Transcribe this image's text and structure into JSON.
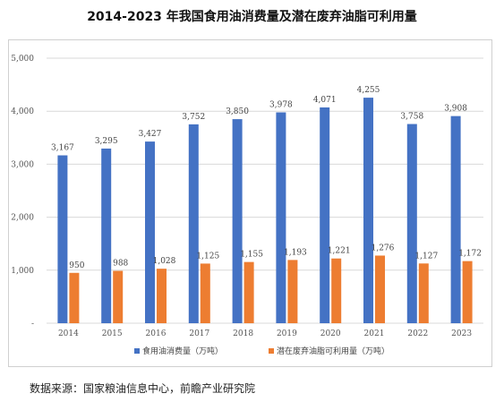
{
  "title": "2014-2023 年我国食用油消费量及潜在废弃油脂可利用量",
  "source": "数据来源：国家粮油信息中心，前瞻产业研究院",
  "chart_data": {
    "type": "bar",
    "categories": [
      "2014",
      "2015",
      "2016",
      "2017",
      "2018",
      "2019",
      "2020",
      "2021",
      "2022",
      "2023"
    ],
    "series": [
      {
        "name": "食用油消费量（万吨）",
        "color": "#4472C4",
        "values": [
          3167,
          3295,
          3427,
          3752,
          3850,
          3978,
          4071,
          4255,
          3758,
          3908
        ],
        "labels": [
          "3,167",
          "3,295",
          "3,427",
          "3,752",
          "3,850",
          "3,978",
          "4,071",
          "4,255",
          "3,758",
          "3,908"
        ]
      },
      {
        "name": "潜在废弃油脂可利用量（万吨）",
        "color": "#ED7D31",
        "values": [
          950,
          988,
          1028,
          1125,
          1155,
          1193,
          1221,
          1276,
          1127,
          1172
        ],
        "labels": [
          "950",
          "988",
          "1,028",
          "1,125",
          "1,155",
          "1,193",
          "1,221",
          "1,276",
          "1,127",
          "1,172"
        ]
      }
    ],
    "ylim": [
      0,
      5000
    ],
    "yticks": [
      0,
      1000,
      2000,
      3000,
      4000,
      5000
    ],
    "ytick_labels": [
      "-",
      "1,000",
      "2,000",
      "3,000",
      "4,000",
      "5,000"
    ],
    "grid": true,
    "legend_position": "bottom"
  }
}
